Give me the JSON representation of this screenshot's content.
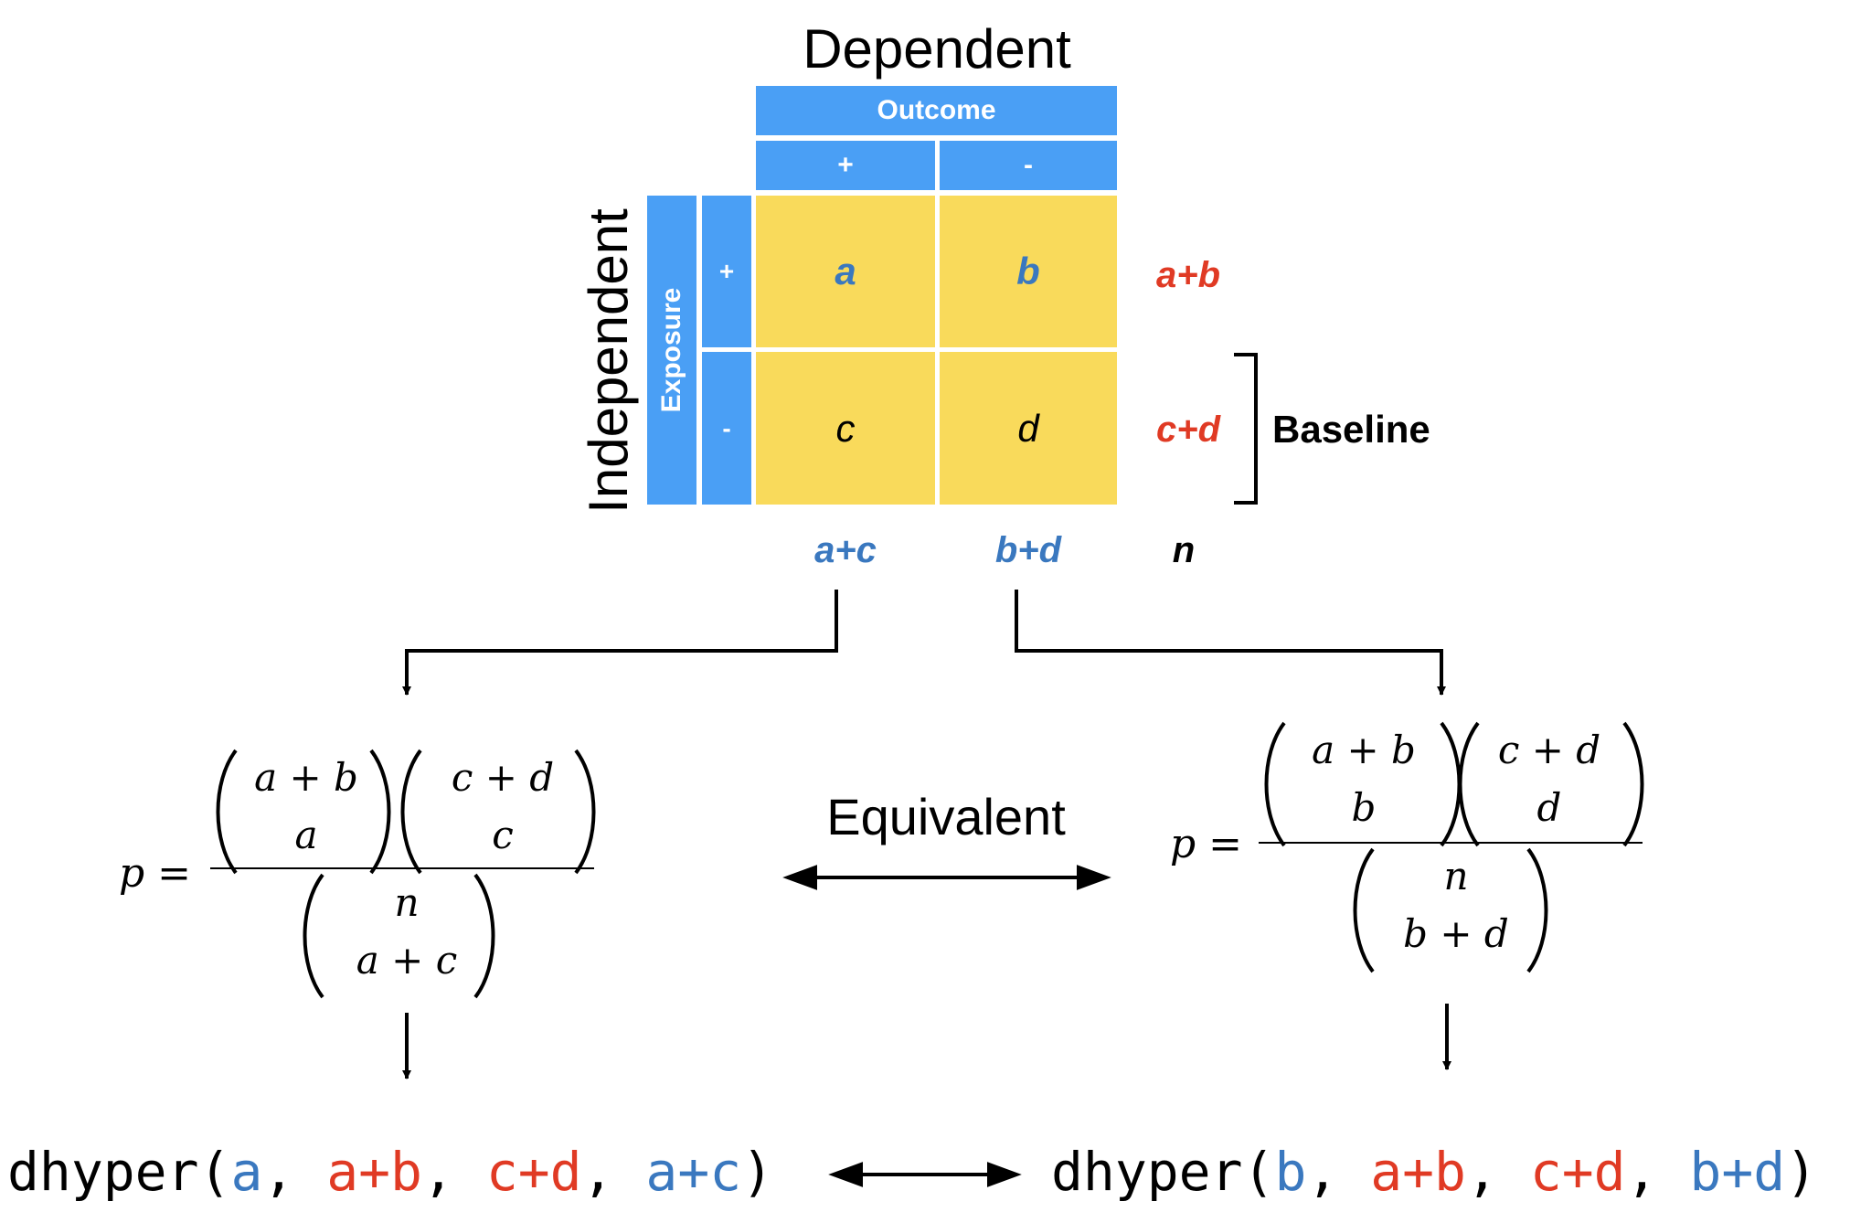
{
  "colors": {
    "blue_box": "#4a9ff5",
    "yellow_cell": "#f9da5b",
    "blue_text": "#3a78bf",
    "red_text": "#e03a24",
    "black": "#000000"
  },
  "table": {
    "dependent_title": "Dependent",
    "independent_title": "Independent",
    "outcome_label": "Outcome",
    "exposure_label": "Exposure",
    "col_plus": "+",
    "col_minus": "-",
    "row_plus": "+",
    "row_minus": "-",
    "cells": {
      "a": "a",
      "b": "b",
      "c": "c",
      "d": "d"
    },
    "row_totals": {
      "ab": "a+b",
      "cd": "c+d"
    },
    "col_totals": {
      "ac": "a+c",
      "bd": "b+d"
    },
    "n": "n",
    "baseline_label": "Baseline"
  },
  "formula_left": {
    "p": "p",
    "eq": "=",
    "binom1": [
      "a + b",
      "a"
    ],
    "binom2": [
      "c + d",
      "c"
    ],
    "binom3": [
      "n",
      "a + c"
    ]
  },
  "formula_right": {
    "p": "p",
    "eq": "=",
    "binom1": [
      "a + b",
      "b"
    ],
    "binom2": [
      "c + d",
      "d"
    ],
    "binom3": [
      "n",
      "b + d"
    ]
  },
  "equivalent_label": "Equivalent",
  "code_left": {
    "fn": "dhyper(",
    "arg1": "a",
    "sep1": ", ",
    "arg2": "a+b",
    "sep2": ", ",
    "arg3": "c+d",
    "sep3": ", ",
    "arg4": "a+c",
    "close": ")"
  },
  "code_right": {
    "fn": "dhyper(",
    "arg1": "b",
    "sep1": ", ",
    "arg2": "a+b",
    "sep2": ", ",
    "arg3": "c+d",
    "sep3": ", ",
    "arg4": "b+d",
    "close": ")"
  }
}
